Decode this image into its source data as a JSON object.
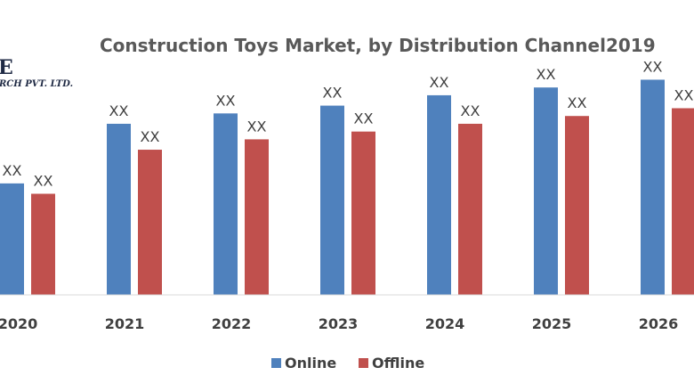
{
  "logo": {
    "line1": "E",
    "line2": "RCH PVT. LTD."
  },
  "chart_data": {
    "type": "bar",
    "title": "Construction Toys Market, by Distribution Channel2019",
    "xlabel": "",
    "ylabel": "",
    "categories": [
      "2020",
      "2021",
      "2022",
      "2023",
      "2024",
      "2025",
      "2026"
    ],
    "series": [
      {
        "name": "Online",
        "color": "#4f81bd",
        "values": [
          43,
          66,
          70,
          73,
          77,
          80,
          83
        ],
        "labels": [
          "XX",
          "XX",
          "XX",
          "XX",
          "XX",
          "XX",
          "XX"
        ]
      },
      {
        "name": "Offline",
        "color": "#c0504d",
        "values": [
          39,
          56,
          60,
          63,
          66,
          69,
          72
        ],
        "labels": [
          "XX",
          "XX",
          "XX",
          "XX",
          "XX",
          "XX",
          "XX"
        ]
      }
    ],
    "ylim": [
      0,
      100
    ],
    "grid": false,
    "legend": "bottom-center"
  }
}
